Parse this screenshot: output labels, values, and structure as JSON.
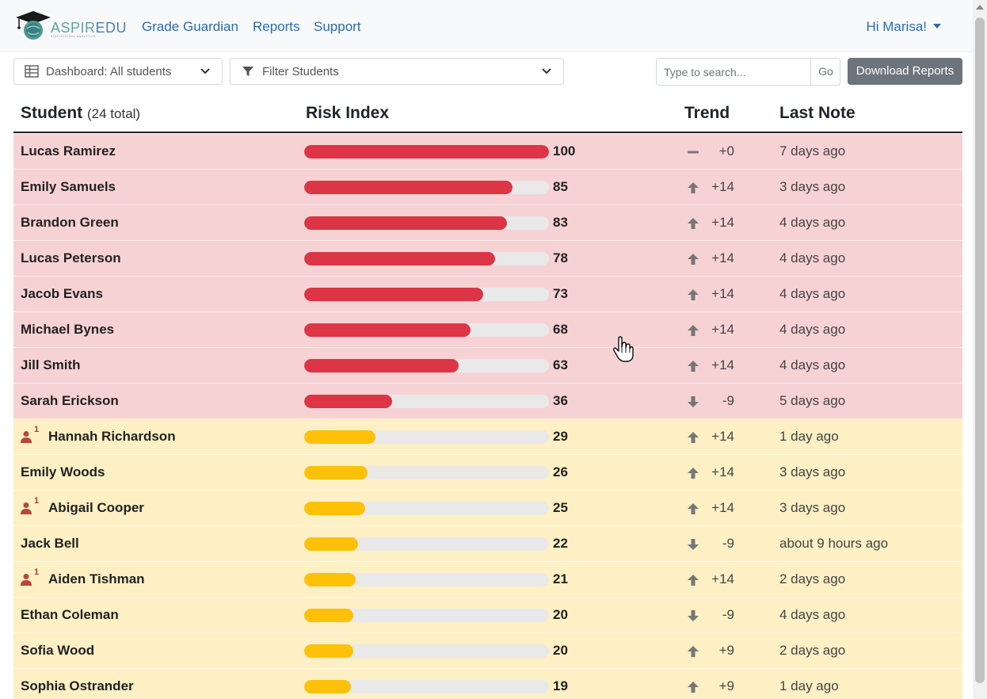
{
  "brand": {
    "name_part1": "ASPIR",
    "name_part2": "EDU",
    "tagline": "EDUCATIONAL ANALYTICS"
  },
  "nav": {
    "links": [
      {
        "label": "Grade Guardian"
      },
      {
        "label": "Reports"
      },
      {
        "label": "Support"
      }
    ],
    "user_label": "Hi Marisa!"
  },
  "toolbar": {
    "dashboard_select": "Dashboard: All students",
    "filter_select": "Filter Students",
    "search_placeholder": "Type to search...",
    "go_label": "Go",
    "download_label": "Download Reports"
  },
  "table": {
    "headers": {
      "student": "Student",
      "student_count": "(24 total)",
      "risk": "Risk Index",
      "trend": "Trend",
      "last_note": "Last Note"
    },
    "rows": [
      {
        "name": "Lucas Ramirez",
        "risk": 100,
        "level": "high",
        "trend_dir": "flat",
        "trend": "+0",
        "note": "7 days ago",
        "flag": ""
      },
      {
        "name": "Emily Samuels",
        "risk": 85,
        "level": "high",
        "trend_dir": "up",
        "trend": "+14",
        "note": "3 days ago",
        "flag": ""
      },
      {
        "name": "Brandon Green",
        "risk": 83,
        "level": "high",
        "trend_dir": "up",
        "trend": "+14",
        "note": "4 days ago",
        "flag": ""
      },
      {
        "name": "Lucas Peterson",
        "risk": 78,
        "level": "high",
        "trend_dir": "up",
        "trend": "+14",
        "note": "4 days ago",
        "flag": ""
      },
      {
        "name": "Jacob Evans",
        "risk": 73,
        "level": "high",
        "trend_dir": "up",
        "trend": "+14",
        "note": "4 days ago",
        "flag": ""
      },
      {
        "name": "Michael Bynes",
        "risk": 68,
        "level": "high",
        "trend_dir": "up",
        "trend": "+14",
        "note": "4 days ago",
        "flag": ""
      },
      {
        "name": "Jill Smith",
        "risk": 63,
        "level": "high",
        "trend_dir": "up",
        "trend": "+14",
        "note": "4 days ago",
        "flag": ""
      },
      {
        "name": "Sarah Erickson",
        "risk": 36,
        "level": "high",
        "trend_dir": "down",
        "trend": "-9",
        "note": "5 days ago",
        "flag": ""
      },
      {
        "name": "Hannah Richardson",
        "risk": 29,
        "level": "mid",
        "trend_dir": "up",
        "trend": "+14",
        "note": "1 day ago",
        "flag": "1"
      },
      {
        "name": "Emily Woods",
        "risk": 26,
        "level": "mid",
        "trend_dir": "up",
        "trend": "+14",
        "note": "3 days ago",
        "flag": ""
      },
      {
        "name": "Abigail Cooper",
        "risk": 25,
        "level": "mid",
        "trend_dir": "up",
        "trend": "+14",
        "note": "3 days ago",
        "flag": "1"
      },
      {
        "name": "Jack Bell",
        "risk": 22,
        "level": "mid",
        "trend_dir": "down",
        "trend": "-9",
        "note": "about 9 hours ago",
        "flag": ""
      },
      {
        "name": "Aiden Tishman",
        "risk": 21,
        "level": "mid",
        "trend_dir": "up",
        "trend": "+14",
        "note": "2 days ago",
        "flag": "1"
      },
      {
        "name": "Ethan Coleman",
        "risk": 20,
        "level": "mid",
        "trend_dir": "down",
        "trend": "-9",
        "note": "4 days ago",
        "flag": ""
      },
      {
        "name": "Sofia Wood",
        "risk": 20,
        "level": "mid",
        "trend_dir": "up",
        "trend": "+9",
        "note": "2 days ago",
        "flag": ""
      },
      {
        "name": "Sophia Ostrander",
        "risk": 19,
        "level": "mid",
        "trend_dir": "up",
        "trend": "+9",
        "note": "1 day ago",
        "flag": ""
      }
    ]
  },
  "colors": {
    "high_row": "#f7d2d5",
    "mid_row": "#fdf0c4",
    "high_bar": "#dc3545",
    "mid_bar": "#ffc107",
    "link": "#2b6cb0"
  },
  "icons": {
    "trend_up": "arrow-up-icon",
    "trend_down": "arrow-down-icon",
    "trend_flat": "minus-icon",
    "flag": "person-icon"
  }
}
